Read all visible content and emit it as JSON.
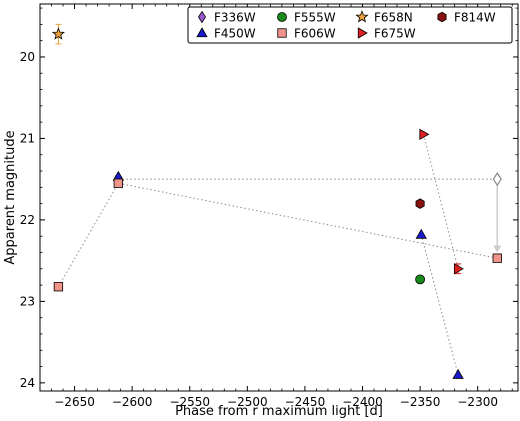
{
  "chart_data": {
    "type": "scatter",
    "xlabel": "Phase from r maximum light [d]",
    "ylabel": "Apparent magnitude",
    "xlim": [
      -2680,
      -2265
    ],
    "ylim": [
      24.1,
      19.35
    ],
    "y_inverted": true,
    "x_ticks": [
      -2650,
      -2600,
      -2550,
      -2500,
      -2450,
      -2400,
      -2350,
      -2300
    ],
    "y_ticks": [
      20,
      21,
      22,
      23,
      24
    ],
    "legend_position": "top-right",
    "grid": false,
    "series": [
      {
        "name": "F336W",
        "marker": "diamond",
        "color": "#9b59d6",
        "points": [
          {
            "x": -2612,
            "y": 21.48
          }
        ]
      },
      {
        "name": "F450W",
        "marker": "triangle-up",
        "color": "#1a1acc",
        "points": [
          {
            "x": -2612,
            "y": 21.47
          },
          {
            "x": -2349,
            "y": 22.18
          },
          {
            "x": -2317,
            "y": 23.9
          }
        ]
      },
      {
        "name": "F555W",
        "marker": "circle",
        "color": "#1a8a1a",
        "points": [
          {
            "x": -2350,
            "y": 22.73
          }
        ]
      },
      {
        "name": "F606W",
        "marker": "square",
        "color": "#f0948a",
        "points": [
          {
            "x": -2664,
            "y": 22.82
          },
          {
            "x": -2612,
            "y": 21.55
          },
          {
            "x": -2283,
            "y": 22.47
          }
        ]
      },
      {
        "name": "F658N",
        "marker": "star",
        "color": "#e9a23b",
        "points": [
          {
            "x": -2664,
            "y": 19.72,
            "err": 0.12
          }
        ]
      },
      {
        "name": "F675W",
        "marker": "triangle-right",
        "color": "#e02020",
        "points": [
          {
            "x": -2347,
            "y": 20.95
          },
          {
            "x": -2317,
            "y": 22.6,
            "err": 0.06
          }
        ]
      },
      {
        "name": "F814W",
        "marker": "hexagon",
        "color": "#8b1010",
        "points": [
          {
            "x": -2350,
            "y": 21.8
          }
        ]
      }
    ],
    "extra_points": [
      {
        "marker": "diamond-open",
        "color": "#888888",
        "x": -2283,
        "y": 21.5
      }
    ],
    "connector_lines": [
      {
        "points": [
          [
            -2664,
            22.82
          ],
          [
            -2612,
            21.55
          ],
          [
            -2283,
            22.47
          ]
        ]
      },
      {
        "points": [
          [
            -2612,
            21.5
          ],
          [
            -2283,
            21.5
          ]
        ]
      },
      {
        "points": [
          [
            -2347,
            20.95
          ],
          [
            -2317,
            22.6
          ]
        ]
      },
      {
        "points": [
          [
            -2349,
            22.18
          ],
          [
            -2317,
            23.9
          ]
        ]
      }
    ],
    "arrow": {
      "from": [
        -2283,
        21.58
      ],
      "to": [
        -2283,
        22.4
      ],
      "color": "#cccccc"
    }
  }
}
